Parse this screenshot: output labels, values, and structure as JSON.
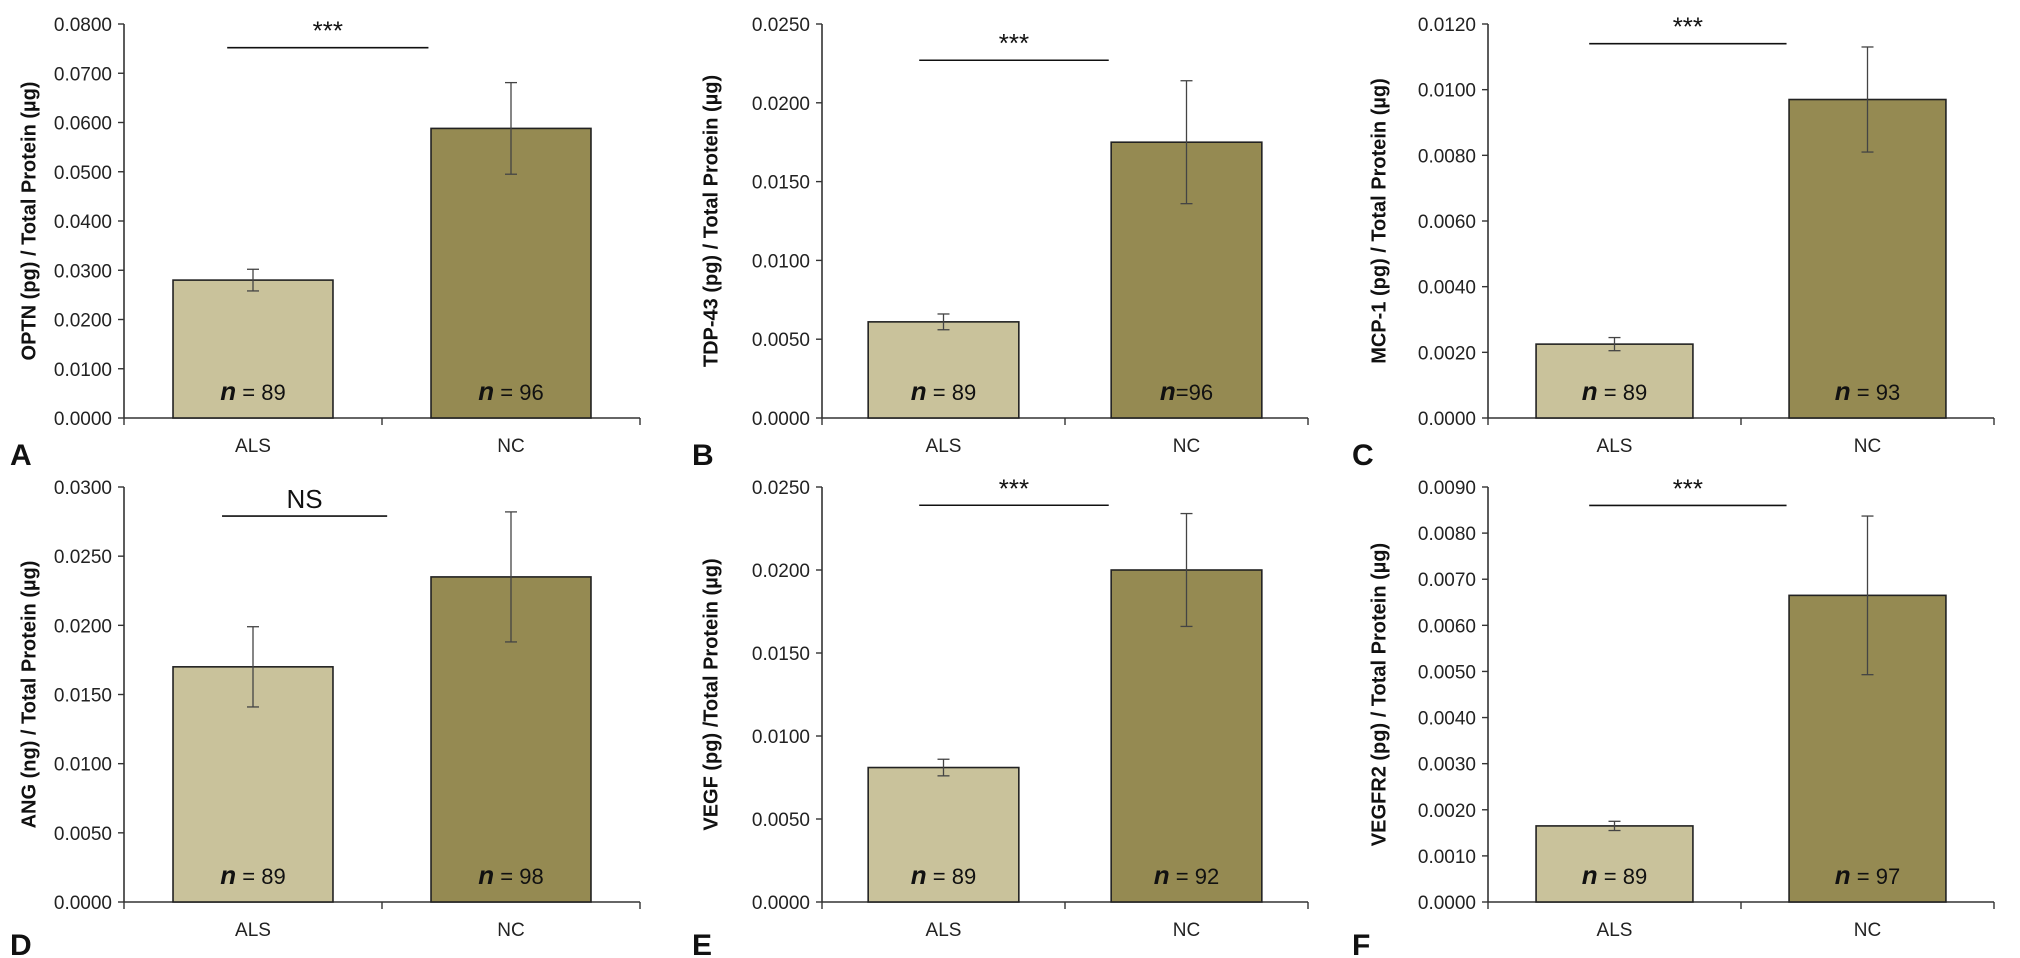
{
  "colors": {
    "als": "#c9c29b",
    "nc": "#958a52",
    "axis": "#333333",
    "edge": "#222222"
  },
  "chart_data": [
    {
      "type": "bar",
      "panel": "A",
      "ylabel": "OPTN (pg) / Total Protein (µg)",
      "categories": [
        "ALS",
        "NC"
      ],
      "values": [
        0.028,
        0.0588
      ],
      "errors": [
        0.0022,
        0.0093
      ],
      "n_labels": [
        {
          "n": "n",
          "eq": " = 89"
        },
        {
          "n": "n",
          "eq": " = 96"
        }
      ],
      "ylim": [
        0,
        0.08
      ],
      "yticks": [
        "0.0000",
        "0.0100",
        "0.0200",
        "0.0300",
        "0.0400",
        "0.0500",
        "0.0600",
        "0.0700",
        "0.0800"
      ],
      "significance": "***",
      "sig_y": 0.0752
    },
    {
      "type": "bar",
      "panel": "B",
      "ylabel": "TDP-43 (pg) / Total Protein (µg)",
      "categories": [
        "ALS",
        "NC"
      ],
      "values": [
        0.0061,
        0.0175
      ],
      "errors": [
        0.0005,
        0.0039
      ],
      "n_labels": [
        {
          "n": "n",
          "eq": " = 89"
        },
        {
          "n": "n",
          "eq": "=96"
        }
      ],
      "ylim": [
        0,
        0.025
      ],
      "yticks": [
        "0.0000",
        "0.0050",
        "0.0100",
        "0.0150",
        "0.0200",
        "0.0250"
      ],
      "significance": "***",
      "sig_y": 0.0227
    },
    {
      "type": "bar",
      "panel": "C",
      "ylabel": "MCP-1 (pg) / Total Protein (µg)",
      "categories": [
        "ALS",
        "NC"
      ],
      "values": [
        0.00225,
        0.0097
      ],
      "errors": [
        0.0002,
        0.0016
      ],
      "n_labels": [
        {
          "n": "n",
          "eq": " = 89"
        },
        {
          "n": "n",
          "eq": " = 93"
        }
      ],
      "ylim": [
        0,
        0.012
      ],
      "yticks": [
        "0.0000",
        "0.0020",
        "0.0040",
        "0.0060",
        "0.0080",
        "0.0100",
        "0.0120"
      ],
      "significance": "***",
      "sig_y": 0.0114
    },
    {
      "type": "bar",
      "panel": "D",
      "ylabel": "ANG (ng) / Total Protein (µg)",
      "categories": [
        "ALS",
        "NC"
      ],
      "values": [
        0.017,
        0.0235
      ],
      "errors": [
        0.0029,
        0.0047
      ],
      "n_labels": [
        {
          "n": "n",
          "eq": " = 89"
        },
        {
          "n": "n",
          "eq": " = 98"
        }
      ],
      "ylim": [
        0,
        0.03
      ],
      "yticks": [
        "0.0000",
        "0.0050",
        "0.0100",
        "0.0150",
        "0.0200",
        "0.0250",
        "0.0300"
      ],
      "significance": "NS",
      "sig_y": 0.0279
    },
    {
      "type": "bar",
      "panel": "E",
      "ylabel": "VEGF (pg) /Total Protein (µg)",
      "categories": [
        "ALS",
        "NC"
      ],
      "values": [
        0.0081,
        0.02
      ],
      "errors": [
        0.0005,
        0.0034
      ],
      "n_labels": [
        {
          "n": "n",
          "eq": " = 89"
        },
        {
          "n": "n",
          "eq": " = 92"
        }
      ],
      "ylim": [
        0,
        0.025
      ],
      "yticks": [
        "0.0000",
        "0.0050",
        "0.0100",
        "0.0150",
        "0.0200",
        "0.0250"
      ],
      "significance": "***",
      "sig_y": 0.0239
    },
    {
      "type": "bar",
      "panel": "F",
      "ylabel": "VEGFR2 (pg) / Total Protein (µg)",
      "categories": [
        "ALS",
        "NC"
      ],
      "values": [
        0.00165,
        0.00665
      ],
      "errors": [
        0.0001,
        0.00172
      ],
      "n_labels": [
        {
          "n": "n",
          "eq": " = 89"
        },
        {
          "n": "n",
          "eq": " = 97"
        }
      ],
      "ylim": [
        0,
        0.009
      ],
      "yticks": [
        "0.0000",
        "0.0010",
        "0.0020",
        "0.0030",
        "0.0040",
        "0.0050",
        "0.0060",
        "0.0070",
        "0.0080",
        "0.0090"
      ],
      "significance": "***",
      "sig_y": 0.0086
    }
  ]
}
